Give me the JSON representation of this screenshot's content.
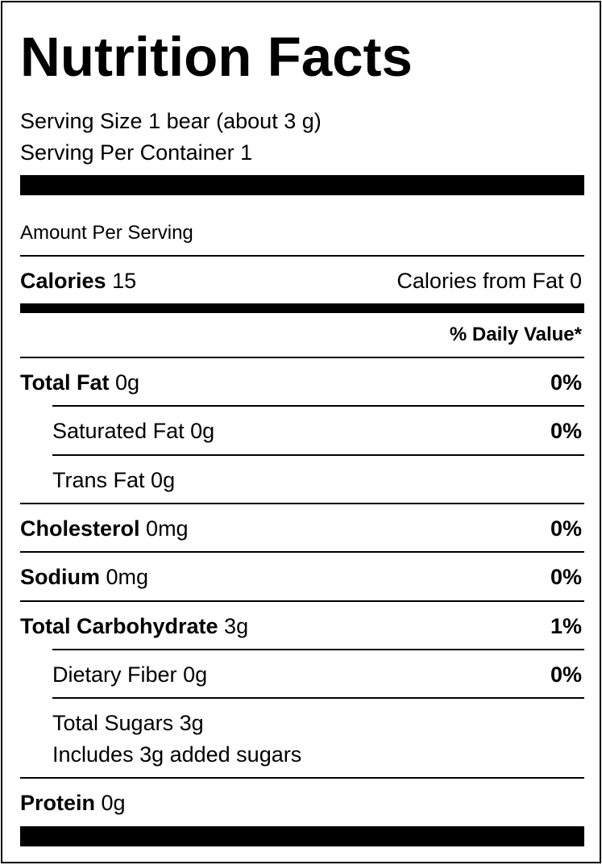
{
  "title": "Nutrition Facts",
  "serving_size": "Serving Size 1 bear (about 3 g)",
  "servings_per_container": "Serving Per Container 1",
  "amount_per_serving": "Amount Per Serving",
  "calories": {
    "label": "Calories",
    "value": "15",
    "from_fat": "Calories from Fat 0"
  },
  "daily_value_header": "% Daily Value*",
  "nutrients": {
    "total_fat": {
      "name": "Total Fat",
      "amount": "0g",
      "dv": "0%"
    },
    "saturated_fat": {
      "name": "Saturated Fat",
      "amount": "0g",
      "dv": "0%"
    },
    "trans_fat": {
      "name": "Trans Fat",
      "amount": "0g"
    },
    "cholesterol": {
      "name": "Cholesterol",
      "amount": "0mg",
      "dv": "0%"
    },
    "sodium": {
      "name": "Sodium",
      "amount": "0mg",
      "dv": "0%"
    },
    "total_carbohydrate": {
      "name": "Total Carbohydrate",
      "amount": "3g",
      "dv": "1%"
    },
    "dietary_fiber": {
      "name": "Dietary Fiber",
      "amount": "0g",
      "dv": "0%"
    },
    "total_sugars": {
      "name": "Total Sugars",
      "amount": "3g"
    },
    "added_sugars": "Includes 3g added sugars",
    "protein": {
      "name": "Protein",
      "amount": "0g"
    }
  }
}
